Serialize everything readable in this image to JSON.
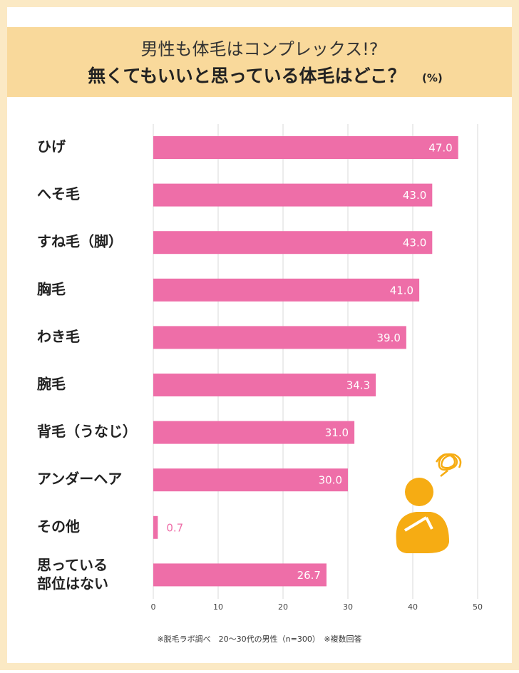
{
  "chart_data": {
    "type": "barh",
    "title": "男性も体毛はコンプレックス!?",
    "subtitle": "無くてもいいと思っている体毛はどこ？",
    "unit": "(%)",
    "categories": [
      "ひげ",
      "へそ毛",
      "すね毛（脚）",
      "胸毛",
      "わき毛",
      "腕毛",
      "背毛（うなじ）",
      "アンダーヘア",
      "その他",
      "思っている\n部位はない"
    ],
    "values": [
      47.0,
      43.0,
      43.0,
      41.0,
      39.0,
      34.3,
      31.0,
      30.0,
      0.7,
      26.7
    ],
    "value_labels": [
      "47.0",
      "43.0",
      "43.0",
      "41.0",
      "39.0",
      "34.3",
      "31.0",
      "30.0",
      "0.7",
      "26.7"
    ],
    "color": "#ee6ea8",
    "xlim": [
      0,
      50
    ],
    "xticks": [
      0,
      10,
      20,
      30,
      40,
      50
    ],
    "grid": true,
    "footnote": "※脱毛ラボ調べ　20〜30代の男性（n=300）　※複数回答"
  }
}
